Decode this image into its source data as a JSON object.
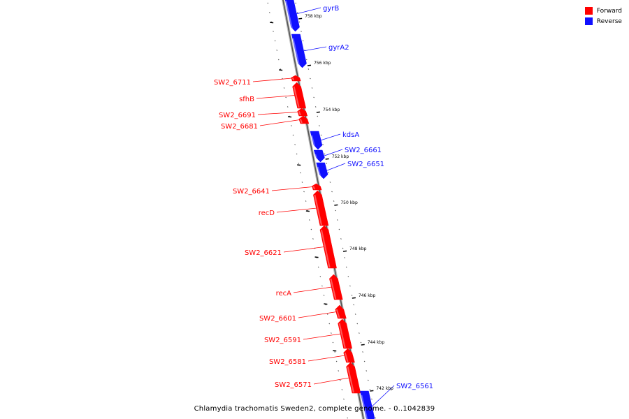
{
  "legend": {
    "forward_label": "Forward",
    "reverse_label": "Reverse",
    "forward_color": "#ff0000",
    "reverse_color": "#1010ff"
  },
  "caption": "Chlamydia trachomatis Sweden2, complete genome. - 0..1042839",
  "ticks": [
    "758 kbp",
    "756 kbp",
    "754 kbp",
    "752 kbp",
    "750 kbp",
    "748 kbp",
    "746 kbp",
    "744 kbp",
    "742 kbp"
  ],
  "genes": [
    {
      "name": "gyrB",
      "strand": "reverse"
    },
    {
      "name": "gyrA2",
      "strand": "reverse"
    },
    {
      "name": "SW2_6711",
      "strand": "forward"
    },
    {
      "name": "sfhB",
      "strand": "forward"
    },
    {
      "name": "SW2_6691",
      "strand": "forward"
    },
    {
      "name": "SW2_6681",
      "strand": "forward"
    },
    {
      "name": "kdsA",
      "strand": "reverse"
    },
    {
      "name": "SW2_6661",
      "strand": "reverse"
    },
    {
      "name": "SW2_6651",
      "strand": "reverse"
    },
    {
      "name": "SW2_6641",
      "strand": "forward"
    },
    {
      "name": "recD",
      "strand": "forward"
    },
    {
      "name": "SW2_6621",
      "strand": "forward"
    },
    {
      "name": "recA",
      "strand": "forward"
    },
    {
      "name": "SW2_6601",
      "strand": "forward"
    },
    {
      "name": "SW2_6591",
      "strand": "forward"
    },
    {
      "name": "SW2_6581",
      "strand": "forward"
    },
    {
      "name": "SW2_6571",
      "strand": "forward"
    },
    {
      "name": "SW2_6561",
      "strand": "reverse"
    }
  ]
}
